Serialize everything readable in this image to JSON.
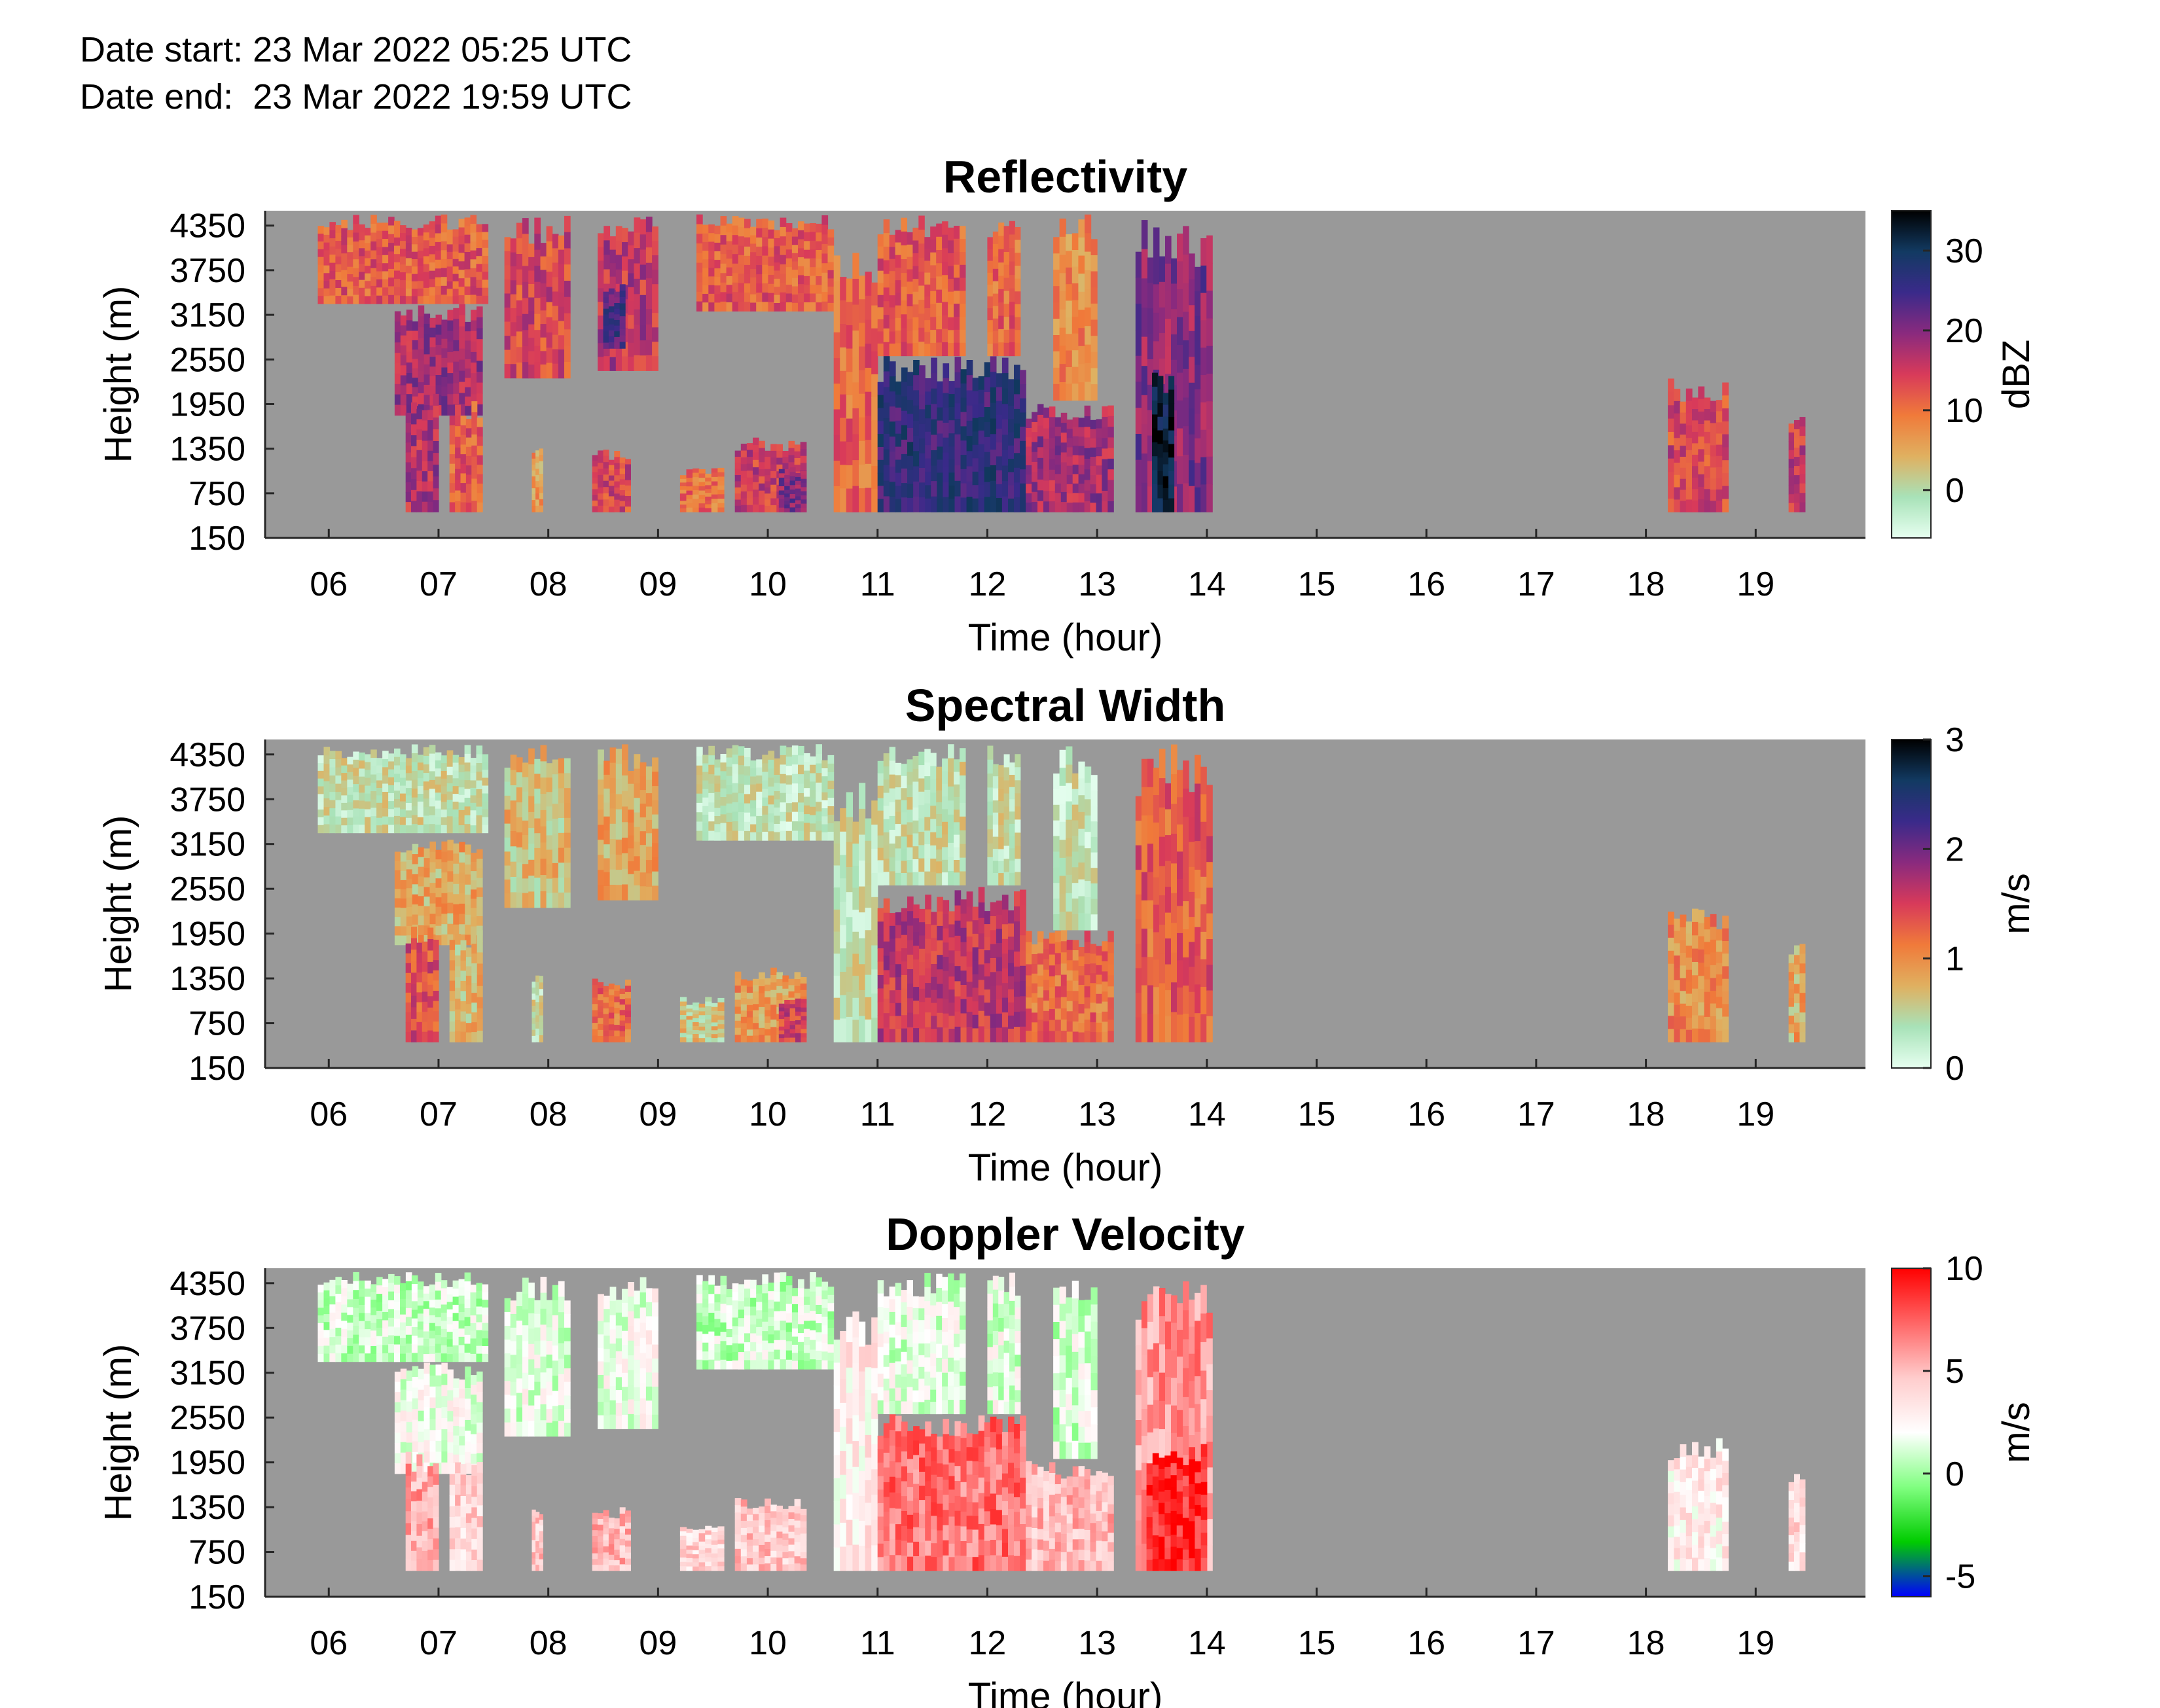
{
  "header": {
    "start_label": "Date start:",
    "start_value": "23 Mar 2022 05:25 UTC",
    "end_label": "Date end:",
    "end_value": "23 Mar 2022 19:59 UTC"
  },
  "colors": {
    "no_data": "#999999",
    "reflectivity_scale": [
      "#e6fff0",
      "#a8e2b8",
      "#e0b060",
      "#f07a3a",
      "#d83a5a",
      "#8a2a7e",
      "#3a2a8a",
      "#123a62",
      "#000000"
    ],
    "spectral_width_scale": [
      "#e6fff0",
      "#a8e2b8",
      "#e0b060",
      "#f07a3a",
      "#d83a5a",
      "#8a2a7e",
      "#3a2a8a",
      "#123a62",
      "#000000"
    ],
    "doppler_scale": [
      "#0000ff",
      "#00cc00",
      "#80ff80",
      "#ffffff",
      "#ffcccc",
      "#ff6666",
      "#ff0000"
    ]
  },
  "chart_data": [
    {
      "type": "heatmap",
      "title": "Reflectivity",
      "xlabel": "Time (hour)",
      "ylabel": "Height (m)",
      "x_ticks": [
        "06",
        "07",
        "08",
        "09",
        "10",
        "11",
        "12",
        "13",
        "14",
        "15",
        "16",
        "17",
        "18",
        "19"
      ],
      "y_ticks": [
        "4350",
        "3750",
        "3150",
        "2550",
        "1950",
        "1350",
        "750",
        "150"
      ],
      "colorbar": {
        "label": "dBZ",
        "ticks": [
          "30",
          "20",
          "10",
          "0"
        ],
        "range": [
          -6,
          35
        ]
      },
      "echo_regions": [
        {
          "t": [
            5.9,
            7.45
          ],
          "h": [
            3300,
            4500
          ],
          "v": 12
        },
        {
          "t": [
            6.6,
            7.4
          ],
          "h": [
            1800,
            3300
          ],
          "v": 18
        },
        {
          "t": [
            6.7,
            7.0
          ],
          "h": [
            500,
            2100
          ],
          "v": 17
        },
        {
          "t": [
            7.1,
            7.4
          ],
          "h": [
            500,
            2000
          ],
          "v": 12
        },
        {
          "t": [
            7.6,
            8.2
          ],
          "h": [
            2300,
            4500
          ],
          "v": 14
        },
        {
          "t": [
            7.85,
            7.95
          ],
          "h": [
            500,
            1400
          ],
          "v": 6
        },
        {
          "t": [
            8.4,
            8.75
          ],
          "h": [
            500,
            1350
          ],
          "v": 14
        },
        {
          "t": [
            8.45,
            9.0
          ],
          "h": [
            2400,
            4500
          ],
          "v": 16
        },
        {
          "t": [
            8.5,
            8.7
          ],
          "h": [
            2700,
            3600
          ],
          "v": 24
        },
        {
          "t": [
            9.2,
            9.6
          ],
          "h": [
            500,
            1100
          ],
          "v": 10
        },
        {
          "t": [
            9.35,
            10.6
          ],
          "h": [
            3200,
            4500
          ],
          "v": 12
        },
        {
          "t": [
            9.7,
            10.35
          ],
          "h": [
            500,
            1500
          ],
          "v": 15
        },
        {
          "t": [
            10.1,
            10.35
          ],
          "h": [
            500,
            1100
          ],
          "v": 20
        },
        {
          "t": [
            10.6,
            11.0
          ],
          "h": [
            500,
            4000
          ],
          "v": 11
        },
        {
          "t": [
            11.0,
            12.35
          ],
          "h": [
            500,
            2600
          ],
          "v": 26
        },
        {
          "t": [
            11.0,
            11.8
          ],
          "h": [
            2600,
            4500
          ],
          "v": 12
        },
        {
          "t": [
            12.0,
            12.3
          ],
          "h": [
            2600,
            4500
          ],
          "v": 11
        },
        {
          "t": [
            12.35,
            13.15
          ],
          "h": [
            500,
            2000
          ],
          "v": 18
        },
        {
          "t": [
            12.6,
            13.0
          ],
          "h": [
            2000,
            4500
          ],
          "v": 8
        },
        {
          "t": [
            13.35,
            14.05
          ],
          "h": [
            500,
            4500
          ],
          "v": 20
        },
        {
          "t": [
            13.5,
            13.7
          ],
          "h": [
            500,
            2400
          ],
          "v": 32
        },
        {
          "t": [
            18.2,
            18.75
          ],
          "h": [
            500,
            2300
          ],
          "v": 14
        },
        {
          "t": [
            19.3,
            19.45
          ],
          "h": [
            500,
            1900
          ],
          "v": 15
        }
      ]
    },
    {
      "type": "heatmap",
      "title": "Spectral Width",
      "xlabel": "Time (hour)",
      "ylabel": "Height (m)",
      "x_ticks": [
        "06",
        "07",
        "08",
        "09",
        "10",
        "11",
        "12",
        "13",
        "14",
        "15",
        "16",
        "17",
        "18",
        "19"
      ],
      "y_ticks": [
        "4350",
        "3750",
        "3150",
        "2550",
        "1950",
        "1350",
        "750",
        "150"
      ],
      "colorbar": {
        "label": "m/s",
        "ticks": [
          "3",
          "2",
          "1",
          "0"
        ],
        "range": [
          0,
          3
        ]
      },
      "echo_regions": [
        {
          "t": [
            5.9,
            7.45
          ],
          "h": [
            3300,
            4500
          ],
          "v": 0.4
        },
        {
          "t": [
            6.6,
            7.4
          ],
          "h": [
            1800,
            3300
          ],
          "v": 0.8
        },
        {
          "t": [
            6.7,
            7.0
          ],
          "h": [
            500,
            2100
          ],
          "v": 1.4
        },
        {
          "t": [
            7.1,
            7.4
          ],
          "h": [
            500,
            2000
          ],
          "v": 0.7
        },
        {
          "t": [
            7.6,
            8.2
          ],
          "h": [
            2300,
            4500
          ],
          "v": 0.7
        },
        {
          "t": [
            7.85,
            7.95
          ],
          "h": [
            500,
            1400
          ],
          "v": 0.4
        },
        {
          "t": [
            8.4,
            8.75
          ],
          "h": [
            500,
            1350
          ],
          "v": 1.2
        },
        {
          "t": [
            8.45,
            9.0
          ],
          "h": [
            2400,
            4500
          ],
          "v": 0.8
        },
        {
          "t": [
            9.2,
            9.6
          ],
          "h": [
            500,
            1100
          ],
          "v": 0.6
        },
        {
          "t": [
            9.35,
            10.6
          ],
          "h": [
            3200,
            4500
          ],
          "v": 0.35
        },
        {
          "t": [
            9.7,
            10.35
          ],
          "h": [
            500,
            1500
          ],
          "v": 0.9
        },
        {
          "t": [
            10.1,
            10.35
          ],
          "h": [
            500,
            1100
          ],
          "v": 1.5
        },
        {
          "t": [
            10.6,
            11.0
          ],
          "h": [
            500,
            4000
          ],
          "v": 0.4
        },
        {
          "t": [
            11.0,
            12.35
          ],
          "h": [
            500,
            2600
          ],
          "v": 1.6
        },
        {
          "t": [
            11.0,
            11.8
          ],
          "h": [
            2600,
            4500
          ],
          "v": 0.4
        },
        {
          "t": [
            12.0,
            12.3
          ],
          "h": [
            2600,
            4500
          ],
          "v": 0.4
        },
        {
          "t": [
            12.35,
            13.15
          ],
          "h": [
            500,
            2000
          ],
          "v": 1.2
        },
        {
          "t": [
            12.6,
            13.0
          ],
          "h": [
            2000,
            4500
          ],
          "v": 0.35
        },
        {
          "t": [
            13.35,
            14.05
          ],
          "h": [
            500,
            4500
          ],
          "v": 1.3
        },
        {
          "t": [
            18.2,
            18.75
          ],
          "h": [
            500,
            2300
          ],
          "v": 1.0
        },
        {
          "t": [
            19.3,
            19.45
          ],
          "h": [
            500,
            1900
          ],
          "v": 0.8
        }
      ]
    },
    {
      "type": "heatmap",
      "title": "Doppler Velocity",
      "xlabel": "Time (hour)",
      "ylabel": "Height (m)",
      "x_ticks": [
        "06",
        "07",
        "08",
        "09",
        "10",
        "11",
        "12",
        "13",
        "14",
        "15",
        "16",
        "17",
        "18",
        "19"
      ],
      "y_ticks": [
        "4350",
        "3750",
        "3150",
        "2550",
        "1950",
        "1350",
        "750",
        "150"
      ],
      "colorbar": {
        "label": "m/s",
        "ticks": [
          "10",
          "5",
          "0",
          "-5"
        ],
        "range": [
          -6,
          10
        ]
      },
      "echo_regions": [
        {
          "t": [
            5.9,
            7.45
          ],
          "h": [
            3300,
            4500
          ],
          "v": 1.0
        },
        {
          "t": [
            6.6,
            7.4
          ],
          "h": [
            1800,
            3300
          ],
          "v": 1.8
        },
        {
          "t": [
            6.7,
            7.0
          ],
          "h": [
            500,
            2100
          ],
          "v": 5.5
        },
        {
          "t": [
            7.1,
            7.4
          ],
          "h": [
            500,
            2000
          ],
          "v": 4.0
        },
        {
          "t": [
            7.6,
            8.2
          ],
          "h": [
            2300,
            4500
          ],
          "v": 1.5
        },
        {
          "t": [
            7.85,
            7.95
          ],
          "h": [
            500,
            1400
          ],
          "v": 4.5
        },
        {
          "t": [
            8.4,
            8.75
          ],
          "h": [
            500,
            1350
          ],
          "v": 5.0
        },
        {
          "t": [
            8.45,
            9.0
          ],
          "h": [
            2400,
            4500
          ],
          "v": 1.8
        },
        {
          "t": [
            9.2,
            9.6
          ],
          "h": [
            500,
            1100
          ],
          "v": 4.0
        },
        {
          "t": [
            9.35,
            10.6
          ],
          "h": [
            3200,
            4500
          ],
          "v": 1.0
        },
        {
          "t": [
            9.7,
            10.35
          ],
          "h": [
            500,
            1500
          ],
          "v": 4.5
        },
        {
          "t": [
            10.6,
            11.0
          ],
          "h": [
            500,
            4000
          ],
          "v": 3.0
        },
        {
          "t": [
            11.0,
            12.35
          ],
          "h": [
            500,
            2600
          ],
          "v": 7.0
        },
        {
          "t": [
            11.0,
            11.8
          ],
          "h": [
            2600,
            4500
          ],
          "v": 1.5
        },
        {
          "t": [
            12.0,
            12.3
          ],
          "h": [
            2600,
            4500
          ],
          "v": 1.5
        },
        {
          "t": [
            12.35,
            13.15
          ],
          "h": [
            500,
            2000
          ],
          "v": 5.0
        },
        {
          "t": [
            12.6,
            13.0
          ],
          "h": [
            2000,
            4500
          ],
          "v": 1.2
        },
        {
          "t": [
            13.35,
            14.05
          ],
          "h": [
            500,
            4500
          ],
          "v": 6.0
        },
        {
          "t": [
            13.45,
            14.0
          ],
          "h": [
            500,
            2200
          ],
          "v": 9.0
        },
        {
          "t": [
            18.2,
            18.75
          ],
          "h": [
            500,
            2300
          ],
          "v": 3.0
        },
        {
          "t": [
            19.3,
            19.45
          ],
          "h": [
            500,
            1900
          ],
          "v": 3.5
        }
      ]
    }
  ]
}
